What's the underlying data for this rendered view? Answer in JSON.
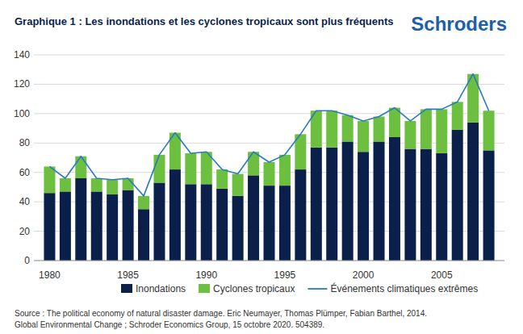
{
  "chart_data": {
    "type": "bar",
    "title": "Graphique 1 : Les inondations et les cyclones tropicaux sont plus fréquents",
    "stacked": true,
    "grid": true,
    "legend": "bottom",
    "x": [
      1980,
      1981,
      1982,
      1983,
      1984,
      1985,
      1986,
      1987,
      1988,
      1989,
      1990,
      1991,
      1992,
      1993,
      1994,
      1995,
      1996,
      1997,
      1998,
      1999,
      2000,
      2001,
      2002,
      2003,
      2004,
      2005,
      2006,
      2007,
      2008
    ],
    "xlim": [
      1979,
      2009
    ],
    "xticks": [
      1980,
      1985,
      1990,
      1995,
      2000,
      2005
    ],
    "ylim": [
      0,
      140
    ],
    "yticks": [
      0,
      20,
      40,
      60,
      80,
      100,
      120,
      140
    ],
    "series": [
      {
        "name": "Inondations",
        "color": "#0b1f4b",
        "values": [
          46,
          47,
          56,
          47,
          45,
          48,
          35,
          53,
          62,
          52,
          52,
          49,
          44,
          58,
          51,
          51,
          62,
          77,
          77,
          81,
          74,
          81,
          84,
          76,
          76,
          73,
          89,
          94,
          75
        ]
      },
      {
        "name": "Cyclones tropicaux",
        "color": "#6cbf3f",
        "values": [
          18,
          9,
          15,
          9,
          10,
          8,
          9,
          19,
          25,
          21,
          22,
          13,
          15,
          16,
          16,
          21,
          24,
          25,
          25,
          18,
          21,
          17,
          20,
          19,
          27,
          30,
          19,
          33,
          27
        ]
      },
      {
        "name": "Événements climatiques extrêmes",
        "type": "line",
        "color": "#2a7ac2",
        "values": [
          64,
          56,
          71,
          56,
          55,
          56,
          44,
          72,
          87,
          73,
          74,
          62,
          59,
          74,
          67,
          72,
          86,
          102,
          102,
          99,
          95,
          98,
          104,
          95,
          103,
          103,
          108,
          127,
          102
        ]
      }
    ]
  },
  "logo": "Schroders",
  "source": [
    "Source : The political economy of natural disaster damage. Eric Neumayer, Thomas Plümper, Fabian Barthel, 2014.",
    "Global Environmental Change ; Schroder Economics Group, 15 octobre 2020. 504389."
  ]
}
